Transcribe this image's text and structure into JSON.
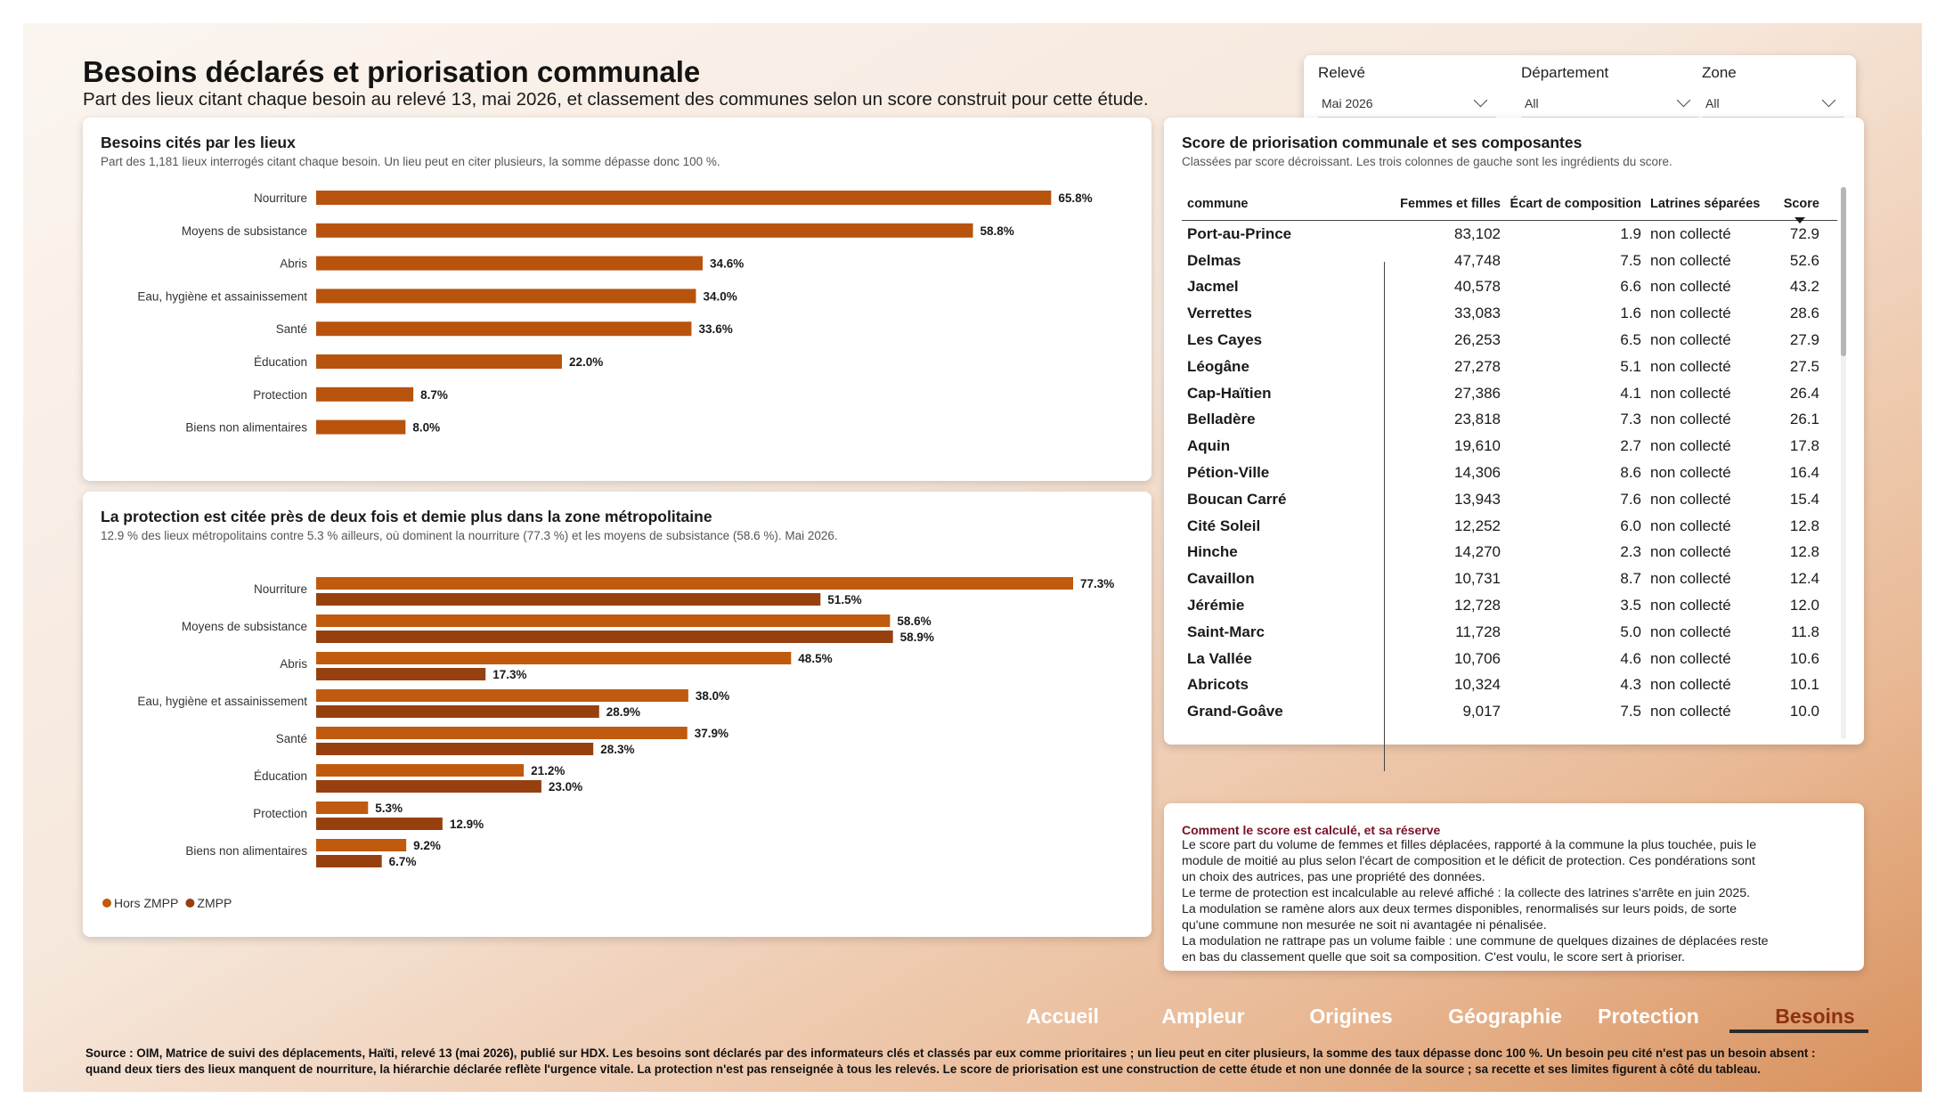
{
  "header": {
    "title": "Besoins déclarés et priorisation communale",
    "subtitle": "Part des lieux citant chaque besoin au relevé 13, mai 2026, et classement des communes selon un score construit pour cette étude."
  },
  "filters": [
    {
      "label": "Relevé",
      "value": "Mai 2026"
    },
    {
      "label": "Département",
      "value": "All"
    },
    {
      "label": "Zone",
      "value": "All"
    }
  ],
  "needs_card": {
    "title": "Besoins cités par les lieux",
    "subtitle": "Part des 1,181 lieux interrogés citant chaque besoin. Un lieu peut en citer plusieurs, la somme dépasse donc 100 %."
  },
  "protection_card": {
    "title": "La protection est citée près de deux fois et demie plus dans la zone métropolitaine",
    "subtitle": "12.9 % des lieux métropolitains contre 5.3 % ailleurs, où dominent la nourriture (77.3 %) et les moyens de subsistance (58.6 %). Mai 2026."
  },
  "chart_data": [
    {
      "type": "bar",
      "orientation": "horizontal",
      "categories": [
        "Nourriture",
        "Moyens de subsistance",
        "Abris",
        "Eau, hygiène et assainissement",
        "Santé",
        "Éducation",
        "Protection",
        "Biens non alimentaires"
      ],
      "values": [
        65.8,
        58.8,
        34.6,
        34.0,
        33.6,
        22.0,
        8.7,
        8.0
      ],
      "labels": [
        "65.8%",
        "58.8%",
        "34.6%",
        "34.0%",
        "33.6%",
        "22.0%",
        "8.7%",
        "8.0%"
      ],
      "color": "#b8530e",
      "xlim": [
        0,
        70
      ]
    },
    {
      "type": "bar",
      "orientation": "horizontal",
      "categories": [
        "Nourriture",
        "Moyens de subsistance",
        "Abris",
        "Eau, hygiène et assainissement",
        "Santé",
        "Éducation",
        "Protection",
        "Biens non alimentaires"
      ],
      "series": [
        {
          "name": "Hors ZMPP",
          "color": "#bf5a0f",
          "values": [
            77.3,
            58.6,
            48.5,
            38.0,
            37.9,
            21.2,
            5.3,
            9.2
          ],
          "labels": [
            "77.3%",
            "58.6%",
            "48.5%",
            "38.0%",
            "37.9%",
            "21.2%",
            "5.3%",
            "9.2%"
          ]
        },
        {
          "name": "ZMPP",
          "color": "#97400f",
          "values": [
            51.5,
            58.9,
            17.3,
            28.9,
            28.3,
            23.0,
            12.9,
            6.7
          ],
          "labels": [
            "51.5%",
            "58.9%",
            "17.3%",
            "28.9%",
            "28.3%",
            "23.0%",
            "12.9%",
            "6.7%"
          ]
        }
      ],
      "xlim": [
        0,
        82
      ],
      "legend_position": "bottom-left"
    }
  ],
  "score_card": {
    "title": "Score de priorisation communale et ses composantes",
    "subtitle": "Classées par score décroissant. Les trois colonnes de gauche sont les ingrédients du score.",
    "columns": [
      "commune",
      "Femmes et filles",
      "Écart de composition",
      "Latrines séparées",
      "Score"
    ],
    "rows": [
      [
        "Port-au-Prince",
        "83,102",
        "1.9",
        "non collecté",
        "72.9"
      ],
      [
        "Delmas",
        "47,748",
        "7.5",
        "non collecté",
        "52.6"
      ],
      [
        "Jacmel",
        "40,578",
        "6.6",
        "non collecté",
        "43.2"
      ],
      [
        "Verrettes",
        "33,083",
        "1.6",
        "non collecté",
        "28.6"
      ],
      [
        "Les Cayes",
        "26,253",
        "6.5",
        "non collecté",
        "27.9"
      ],
      [
        "Léogâne",
        "27,278",
        "5.1",
        "non collecté",
        "27.5"
      ],
      [
        "Cap-Haïtien",
        "27,386",
        "4.1",
        "non collecté",
        "26.4"
      ],
      [
        "Belladère",
        "23,818",
        "7.3",
        "non collecté",
        "26.1"
      ],
      [
        "Aquin",
        "19,610",
        "2.7",
        "non collecté",
        "17.8"
      ],
      [
        "Pétion-Ville",
        "14,306",
        "8.6",
        "non collecté",
        "16.4"
      ],
      [
        "Boucan Carré",
        "13,943",
        "7.6",
        "non collecté",
        "15.4"
      ],
      [
        "Cité Soleil",
        "12,252",
        "6.0",
        "non collecté",
        "12.8"
      ],
      [
        "Hinche",
        "14,270",
        "2.3",
        "non collecté",
        "12.8"
      ],
      [
        "Cavaillon",
        "10,731",
        "8.7",
        "non collecté",
        "12.4"
      ],
      [
        "Jérémie",
        "12,728",
        "3.5",
        "non collecté",
        "12.0"
      ],
      [
        "Saint-Marc",
        "11,728",
        "5.0",
        "non collecté",
        "11.8"
      ],
      [
        "La Vallée",
        "10,706",
        "4.6",
        "non collecté",
        "10.6"
      ],
      [
        "Abricots",
        "10,324",
        "4.3",
        "non collecté",
        "10.1"
      ],
      [
        "Grand-Goâve",
        "9,017",
        "7.5",
        "non collecté",
        "10.0"
      ]
    ]
  },
  "note": {
    "title": "Comment le score est calculé, et sa réserve",
    "lines": [
      "Le score part du volume de femmes et filles déplacées, rapporté à la commune la plus touchée, puis le",
      "module de moitié au plus selon l'écart de composition et le déficit de protection. Ces pondérations sont",
      "un choix des autrices, pas une propriété des données.",
      "Le terme de protection est incalculable au relevé affiché : la collecte des latrines s'arrête en juin 2025.",
      "La modulation se ramène alors aux deux termes disponibles, renormalisés sur leurs poids, de sorte",
      "qu'une commune non mesurée ne soit ni avantagée ni pénalisée.",
      "La modulation ne rattrape pas un volume faible : une commune de quelques dizaines de déplacées reste",
      "en bas du classement quelle que soit sa composition. C'est voulu, le score sert à prioriser."
    ]
  },
  "nav": {
    "items": [
      "Accueil",
      "Ampleur",
      "Origines",
      "Géographie",
      "Protection",
      "Besoins"
    ],
    "active": "Besoins"
  },
  "footer": {
    "line1": "Source : OIM, Matrice de suivi des déplacements, Haïti, relevé 13 (mai 2026), publié sur HDX. Les besoins sont déclarés par des informateurs clés et classés par eux comme prioritaires ; un lieu peut en citer plusieurs, la somme des taux dépasse donc 100 %. Un besoin peu cité n'est pas un besoin absent :",
    "line2": "quand deux tiers des lieux manquent de nourriture, la hiérarchie déclarée reflète l'urgence vitale. La protection n'est pas renseignée à tous les relevés. Le score de priorisation est une construction de cette étude et non une donnée de la source ; sa recette et ses limites figurent à côté du tableau."
  }
}
